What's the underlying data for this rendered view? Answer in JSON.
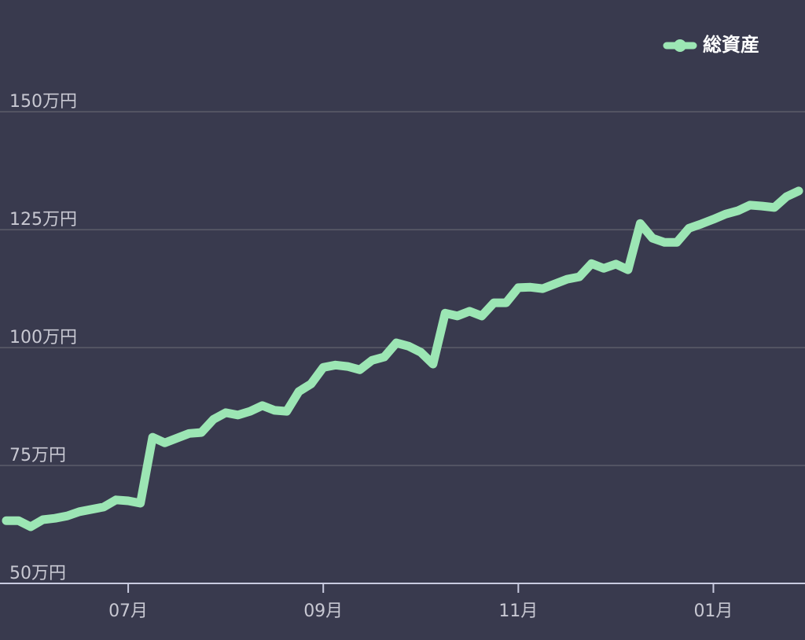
{
  "chart_data": {
    "type": "line",
    "categories": [
      null,
      null,
      null,
      null,
      null,
      null,
      null,
      null,
      null,
      null,
      "07月",
      null,
      null,
      null,
      null,
      null,
      null,
      null,
      null,
      null,
      null,
      null,
      null,
      null,
      null,
      null,
      "09月",
      null,
      null,
      null,
      null,
      null,
      null,
      null,
      null,
      null,
      null,
      null,
      null,
      null,
      null,
      null,
      "11月",
      null,
      null,
      null,
      null,
      null,
      null,
      null,
      null,
      null,
      null,
      null,
      null,
      null,
      null,
      null,
      "01月",
      null,
      null,
      null,
      null,
      null,
      null,
      null
    ],
    "series": [
      {
        "name": "総資産",
        "color": "#9ce6b4",
        "values": [
          63.3,
          63.3,
          62,
          63.5,
          63.8,
          64.3,
          65.2,
          65.7,
          66.2,
          67.7,
          67.5,
          67,
          81,
          79.8,
          80.8,
          81.8,
          82,
          84.8,
          86.2,
          85.7,
          86.5,
          87.7,
          86.7,
          86.5,
          90.7,
          92.3,
          95.8,
          96.3,
          96,
          95.3,
          97.3,
          98,
          101,
          100.3,
          99,
          96.5,
          107.3,
          106.7,
          107.7,
          106.7,
          109.5,
          109.5,
          112.7,
          112.8,
          112.5,
          113.5,
          114.5,
          115,
          117.8,
          116.8,
          117.7,
          116.5,
          126.3,
          123.2,
          122.3,
          122.3,
          125.3,
          126.2,
          127.2,
          128.3,
          129,
          130.2,
          130,
          129.7,
          132,
          133.2
        ]
      }
    ],
    "ylim": [
      50,
      173.7
    ],
    "yticks": [
      {
        "value": 50,
        "label": "50万円"
      },
      {
        "value": 75,
        "label": "75万円"
      },
      {
        "value": 100,
        "label": "100万円"
      },
      {
        "value": 125,
        "label": "125万円"
      },
      {
        "value": 150,
        "label": "150万円"
      }
    ],
    "grid": true,
    "legend": "top-right"
  }
}
